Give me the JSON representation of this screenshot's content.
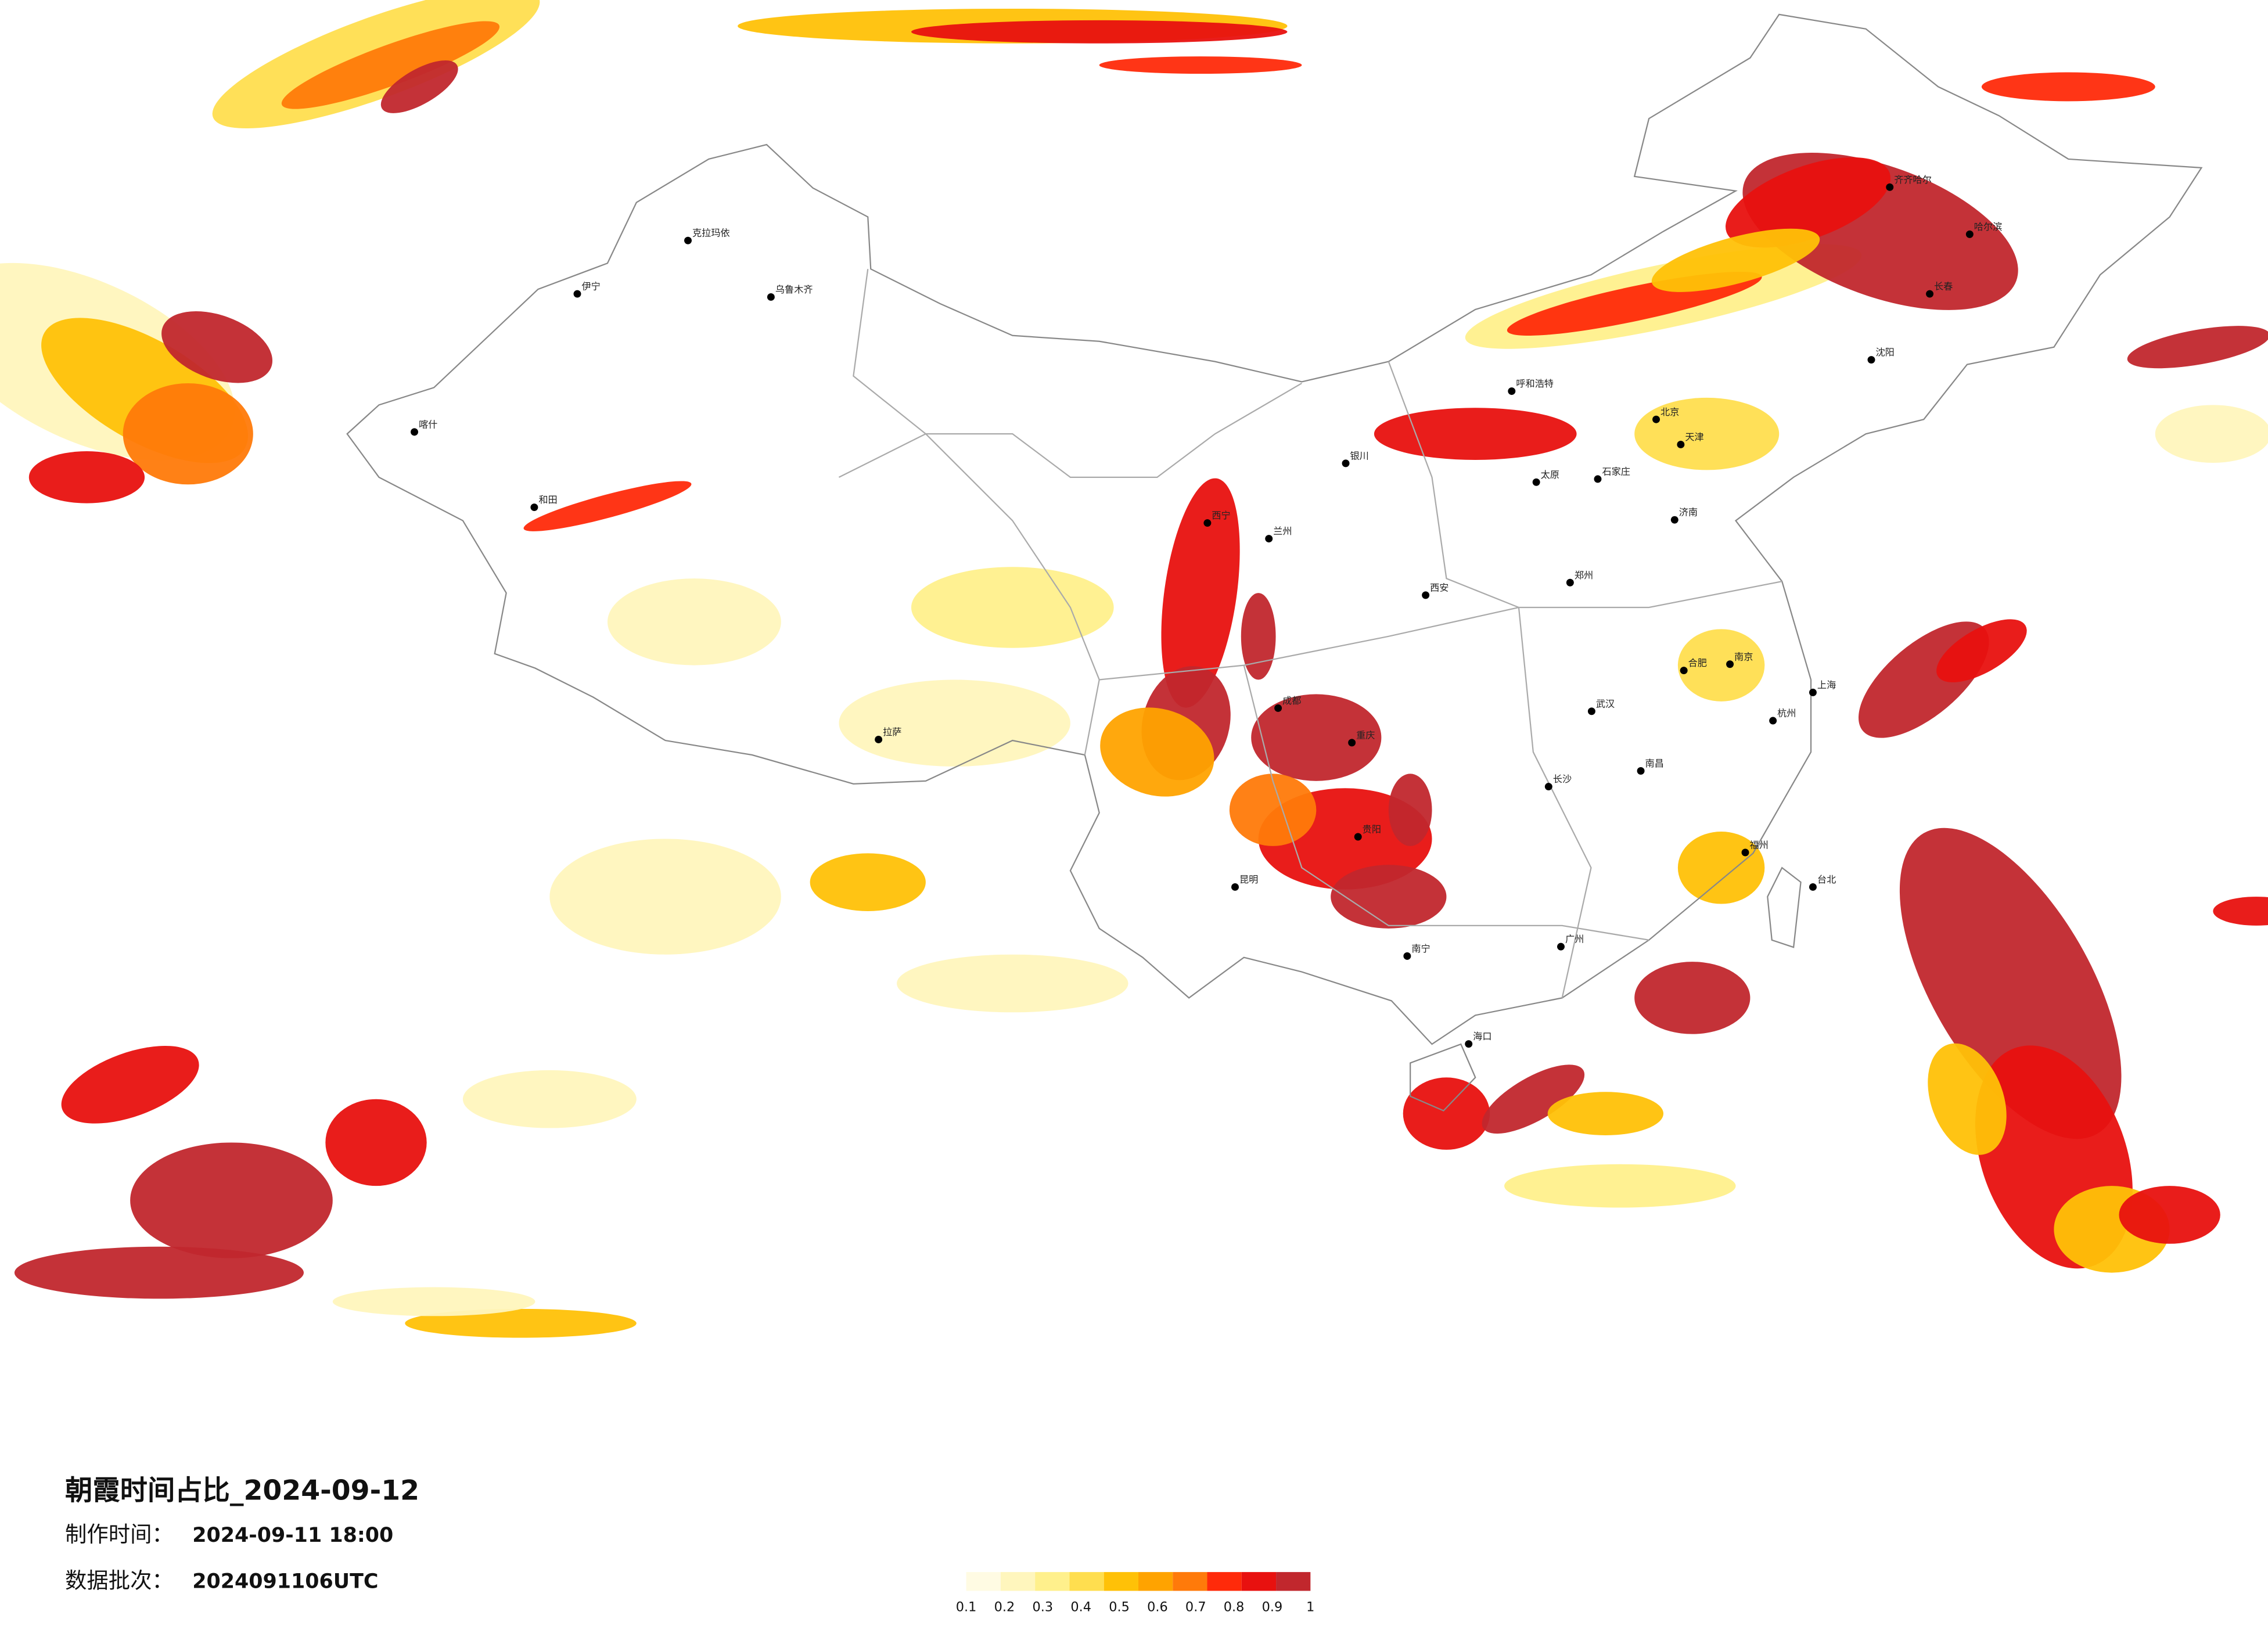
{
  "header": {
    "title": "朝霞时间占比_2024-09-12",
    "made_label": "制作时间：",
    "made_time": "2024-09-11 18:00",
    "batch_label": "数据批次：",
    "batch": "2024091106UTC"
  },
  "colorbar": {
    "ticks": [
      0.1,
      0.2,
      0.3,
      0.4,
      0.5,
      0.6,
      0.7,
      0.8,
      0.9,
      1
    ],
    "colors": [
      "#fffbe3",
      "#fff6bd",
      "#fff08c",
      "#ffde4f",
      "#ffc107",
      "#ffa300",
      "#ff7a0a",
      "#ff2a0a",
      "#e8110f",
      "#c1272d"
    ]
  },
  "cities": [
    {
      "name": "乌鲁木齐",
      "lon": 87.6,
      "lat": 43.8
    },
    {
      "name": "拉萨",
      "lon": 91.1,
      "lat": 29.7
    },
    {
      "name": "北京",
      "lon": 116.4,
      "lat": 39.9
    },
    {
      "name": "上海",
      "lon": 121.5,
      "lat": 31.2
    },
    {
      "name": "广州",
      "lon": 113.3,
      "lat": 23.1
    },
    {
      "name": "成都",
      "lon": 104.1,
      "lat": 30.7
    },
    {
      "name": "重庆",
      "lon": 106.5,
      "lat": 29.6
    },
    {
      "name": "西安",
      "lon": 108.9,
      "lat": 34.3
    },
    {
      "name": "兰州",
      "lon": 103.8,
      "lat": 36.1
    },
    {
      "name": "西宁",
      "lon": 101.8,
      "lat": 36.6
    },
    {
      "name": "银川",
      "lon": 106.3,
      "lat": 38.5
    },
    {
      "name": "呼和浩特",
      "lon": 111.7,
      "lat": 40.8
    },
    {
      "name": "哈尔滨",
      "lon": 126.6,
      "lat": 45.8
    },
    {
      "name": "长春",
      "lon": 125.3,
      "lat": 43.9
    },
    {
      "name": "沈阳",
      "lon": 123.4,
      "lat": 41.8
    },
    {
      "name": "天津",
      "lon": 117.2,
      "lat": 39.1
    },
    {
      "name": "济南",
      "lon": 117.0,
      "lat": 36.7
    },
    {
      "name": "郑州",
      "lon": 113.6,
      "lat": 34.7
    },
    {
      "name": "武汉",
      "lon": 114.3,
      "lat": 30.6
    },
    {
      "name": "长沙",
      "lon": 112.9,
      "lat": 28.2
    },
    {
      "name": "南昌",
      "lon": 115.9,
      "lat": 28.7
    },
    {
      "name": "南京",
      "lon": 118.8,
      "lat": 32.1
    },
    {
      "name": "杭州",
      "lon": 120.2,
      "lat": 30.3
    },
    {
      "name": "福州",
      "lon": 119.3,
      "lat": 26.1
    },
    {
      "name": "台北",
      "lon": 121.5,
      "lat": 25.0
    },
    {
      "name": "南宁",
      "lon": 108.3,
      "lat": 22.8
    },
    {
      "name": "昆明",
      "lon": 102.7,
      "lat": 25.0
    },
    {
      "name": "贵阳",
      "lon": 106.7,
      "lat": 26.6
    },
    {
      "name": "海口",
      "lon": 110.3,
      "lat": 20.0
    },
    {
      "name": "太原",
      "lon": 112.5,
      "lat": 37.9
    },
    {
      "name": "石家庄",
      "lon": 114.5,
      "lat": 38.0
    },
    {
      "name": "合肥",
      "lon": 117.3,
      "lat": 31.9
    },
    {
      "name": "喀什",
      "lon": 76.0,
      "lat": 39.5
    },
    {
      "name": "伊宁",
      "lon": 81.3,
      "lat": 43.9
    },
    {
      "name": "和田",
      "lon": 79.9,
      "lat": 37.1
    },
    {
      "name": "克拉玛依",
      "lon": 84.9,
      "lat": 45.6
    },
    {
      "name": "齐齐哈尔",
      "lon": 124.0,
      "lat": 47.3
    }
  ]
}
